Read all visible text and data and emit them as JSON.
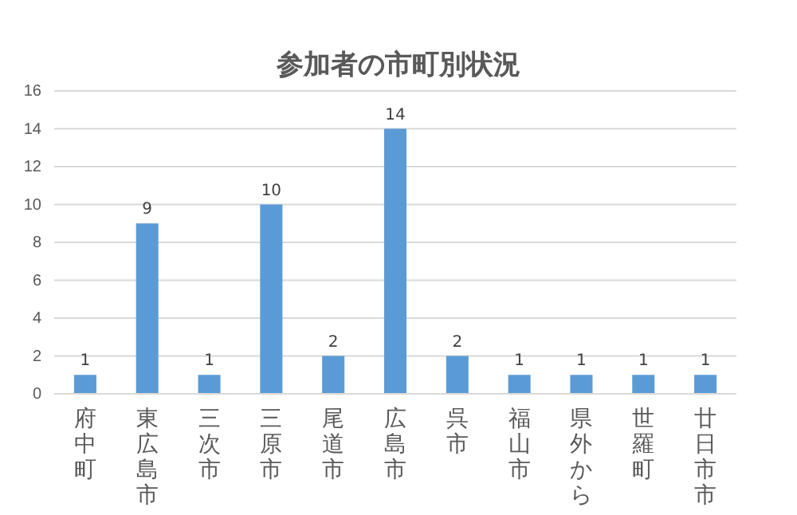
{
  "chart_data": {
    "type": "bar",
    "title": "参加者の市町別状況",
    "categories": [
      "府中町",
      "東広島市",
      "三次市",
      "三原市",
      "尾道市",
      "広島市",
      "呉市",
      "福山市",
      "県外から",
      "世羅町",
      "廿日市市"
    ],
    "values": [
      1,
      9,
      1,
      10,
      2,
      14,
      2,
      1,
      1,
      1,
      1
    ],
    "color": "#5b9bd5",
    "ylim": [
      0,
      16
    ],
    "yticks": [
      0,
      2,
      4,
      6,
      8,
      10,
      12,
      14,
      16
    ],
    "grid": "y",
    "data_labels": true
  }
}
